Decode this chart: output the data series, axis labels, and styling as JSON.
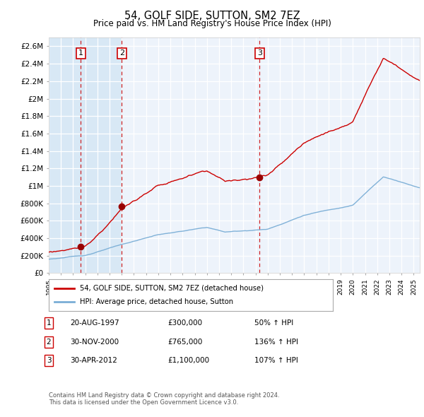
{
  "title": "54, GOLF SIDE, SUTTON, SM2 7EZ",
  "subtitle": "Price paid vs. HM Land Registry's House Price Index (HPI)",
  "legend_line1": "54, GOLF SIDE, SUTTON, SM2 7EZ (detached house)",
  "legend_line2": "HPI: Average price, detached house, Sutton",
  "transactions": [
    {
      "num": 1,
      "date_str": "20-AUG-1997",
      "price": 300000,
      "pct": "50%",
      "year": 1997.63
    },
    {
      "num": 2,
      "date_str": "30-NOV-2000",
      "price": 765000,
      "pct": "136%",
      "year": 2001.0
    },
    {
      "num": 3,
      "date_str": "30-APR-2012",
      "price": 1100000,
      "pct": "107%",
      "year": 2012.33
    }
  ],
  "footnote1": "Contains HM Land Registry data © Crown copyright and database right 2024.",
  "footnote2": "This data is licensed under the Open Government Licence v3.0.",
  "plot_bg_color": "#edf3fb",
  "shade_color": "#d8e8f5",
  "red_line_color": "#cc0000",
  "blue_line_color": "#7aaed6",
  "vline_color": "#cc0000",
  "grid_color": "#c8d8e8",
  "marker_color": "#990000",
  "xmin": 1995.0,
  "xmax": 2025.5,
  "ymin": 0,
  "ymax": 2700000,
  "yticks": [
    0,
    200000,
    400000,
    600000,
    800000,
    1000000,
    1200000,
    1400000,
    1600000,
    1800000,
    2000000,
    2200000,
    2400000,
    2600000
  ],
  "ytick_labels": [
    "£0",
    "£200K",
    "£400K",
    "£600K",
    "£800K",
    "£1M",
    "£1.2M",
    "£1.4M",
    "£1.6M",
    "£1.8M",
    "£2M",
    "£2.2M",
    "£2.4M",
    "£2.6M"
  ]
}
